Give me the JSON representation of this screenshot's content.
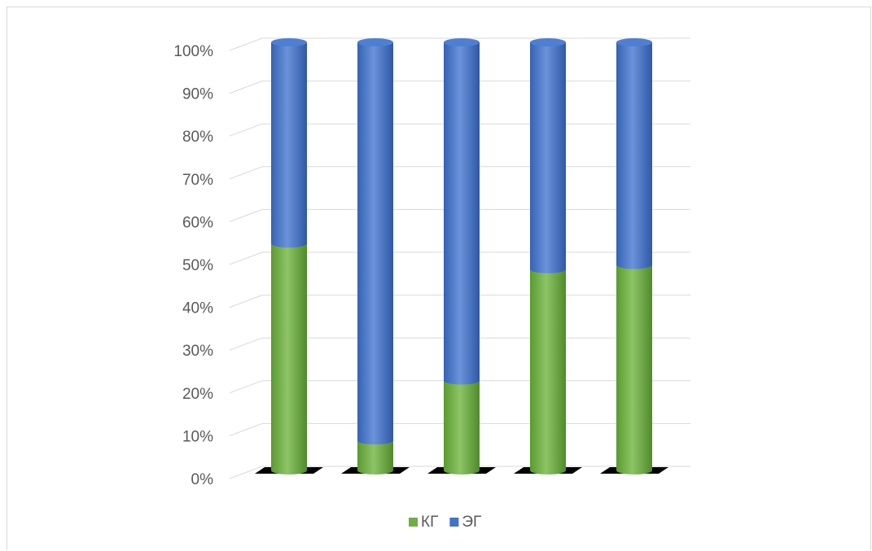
{
  "chart_data": {
    "type": "bar",
    "stacked": true,
    "percent_stacked": true,
    "style": "3d-cylinder",
    "categories": [
      "",
      "",
      "",
      "",
      ""
    ],
    "series": [
      {
        "name": "КГ",
        "color": "#70ad47",
        "values": [
          53,
          7,
          21,
          47,
          48
        ]
      },
      {
        "name": "ЭГ",
        "color": "#4472c4",
        "values": [
          47,
          93,
          79,
          53,
          52
        ]
      }
    ],
    "y_ticks": [
      "0%",
      "10%",
      "20%",
      "30%",
      "40%",
      "50%",
      "60%",
      "70%",
      "80%",
      "90%",
      "100%"
    ],
    "ylim": [
      0,
      100
    ],
    "grid": true,
    "legend_position": "bottom"
  }
}
